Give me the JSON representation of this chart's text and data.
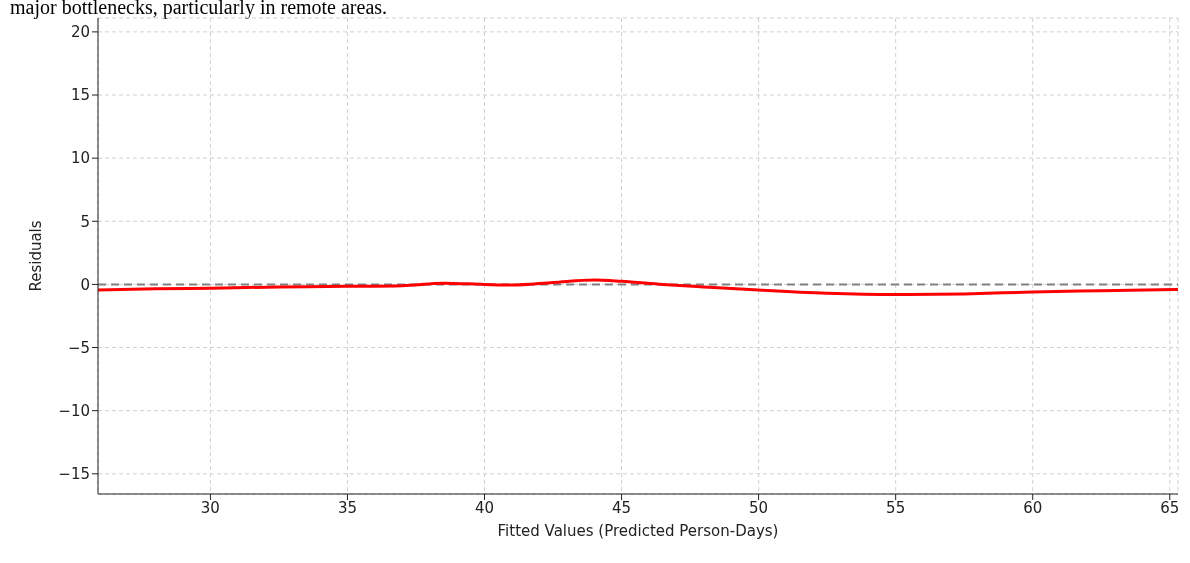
{
  "chart_data": {
    "type": "line",
    "xlabel": "Fitted Values (Predicted Person-Days)",
    "ylabel": "Residuals",
    "annotations": [
      "major bottlenecks, particularly in remote areas."
    ],
    "x": [
      25.9,
      28,
      30,
      32.5,
      35,
      37,
      38.5,
      40,
      41,
      42.5,
      44,
      45,
      46.5,
      48,
      50,
      52.5,
      55,
      57.5,
      60,
      62.5,
      65.3
    ],
    "series": [
      {
        "color": "#ff0000",
        "values": [
          -0.45,
          -0.35,
          -0.3,
          -0.2,
          -0.15,
          -0.1,
          0.1,
          0,
          -0.05,
          0.15,
          0.35,
          0.25,
          0,
          -0.2,
          -0.45,
          -0.7,
          -0.8,
          -0.75,
          -0.6,
          -0.5,
          -0.4
        ]
      }
    ],
    "xlim": [
      25.9,
      65.3
    ],
    "xticks": [
      30,
      35,
      40,
      45,
      50,
      55,
      60,
      65
    ],
    "ylim": [
      -16.6,
      21.1
    ],
    "yticks": [
      -15,
      -10,
      -5,
      0,
      5,
      10,
      15,
      20
    ],
    "ref_lines": [
      {
        "axis": "y",
        "value": 0,
        "color": "#808080",
        "line_style": "dashed"
      }
    ],
    "grid": true,
    "legend": false,
    "marker": "none",
    "line_style": "solid"
  }
}
